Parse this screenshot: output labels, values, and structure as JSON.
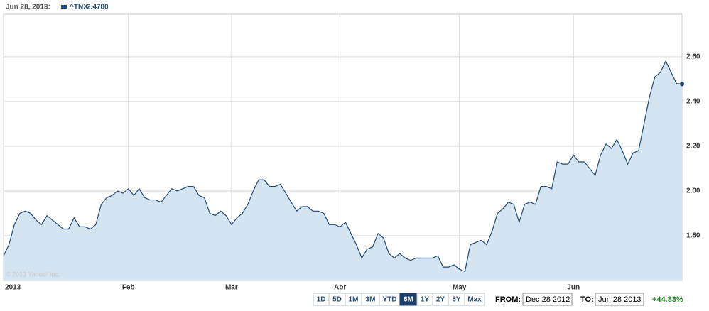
{
  "chart_data": {
    "type": "area",
    "header_date": "Jun 28, 2013:",
    "categories": [
      "2013",
      null,
      null,
      null,
      null,
      null,
      null,
      null,
      null,
      null,
      null,
      null,
      null,
      null,
      null,
      null,
      null,
      null,
      null,
      null,
      null,
      null,
      null,
      "Feb",
      null,
      null,
      null,
      null,
      null,
      null,
      null,
      null,
      null,
      null,
      null,
      null,
      null,
      null,
      null,
      null,
      null,
      null,
      "Mar",
      null,
      null,
      null,
      null,
      null,
      null,
      null,
      null,
      null,
      null,
      null,
      null,
      null,
      null,
      null,
      null,
      null,
      null,
      null,
      "Apr",
      null,
      null,
      null,
      null,
      null,
      null,
      null,
      null,
      null,
      null,
      null,
      null,
      null,
      null,
      null,
      null,
      null,
      null,
      null,
      null,
      null,
      "May",
      null,
      null,
      null,
      null,
      null,
      null,
      null,
      null,
      null,
      null,
      null,
      null,
      null,
      null,
      null,
      null,
      null,
      null,
      null,
      null,
      "Jun",
      null,
      null,
      null,
      null,
      null,
      null,
      null,
      null,
      null,
      null,
      null,
      null,
      null,
      null,
      null,
      null,
      null,
      null,
      null,
      null
    ],
    "series": [
      {
        "name": "^TNX",
        "color": "#1f4a78",
        "fill": "#d5e4f1",
        "current": {
          "value": 2.478,
          "label": "2.4780"
        },
        "values": [
          1.71,
          1.76,
          1.85,
          1.9,
          1.91,
          1.9,
          1.87,
          1.85,
          1.89,
          1.87,
          1.85,
          1.83,
          1.83,
          1.88,
          1.84,
          1.84,
          1.83,
          1.85,
          1.94,
          1.97,
          1.98,
          2.0,
          1.99,
          2.01,
          1.98,
          2.01,
          1.97,
          1.96,
          1.96,
          1.95,
          1.98,
          2.01,
          2.0,
          2.01,
          2.02,
          2.02,
          1.98,
          1.97,
          1.9,
          1.89,
          1.91,
          1.89,
          1.85,
          1.88,
          1.9,
          1.94,
          2.0,
          2.05,
          2.05,
          2.02,
          2.02,
          2.03,
          1.99,
          1.95,
          1.91,
          1.93,
          1.93,
          1.91,
          1.91,
          1.9,
          1.85,
          1.85,
          1.84,
          1.86,
          1.81,
          1.76,
          1.7,
          1.74,
          1.75,
          1.81,
          1.79,
          1.72,
          1.7,
          1.72,
          1.7,
          1.69,
          1.7,
          1.7,
          1.7,
          1.7,
          1.71,
          1.66,
          1.66,
          1.67,
          1.65,
          1.64,
          1.76,
          1.77,
          1.78,
          1.76,
          1.82,
          1.9,
          1.92,
          1.95,
          1.94,
          1.86,
          1.94,
          1.95,
          1.94,
          2.02,
          2.02,
          2.01,
          2.13,
          2.12,
          2.12,
          2.16,
          2.13,
          2.13,
          2.1,
          2.07,
          2.16,
          2.21,
          2.19,
          2.23,
          2.18,
          2.12,
          2.17,
          2.18,
          2.3,
          2.42,
          2.51,
          2.53,
          2.58,
          2.53,
          2.48,
          2.478
        ]
      }
    ],
    "ylim": [
      1.6,
      2.79
    ],
    "yticks": [
      {
        "value": 1.8,
        "label": "1.80"
      },
      {
        "value": 2.0,
        "label": "2.00"
      },
      {
        "value": 2.2,
        "label": "2.20"
      },
      {
        "value": 2.4,
        "label": "2.40"
      },
      {
        "value": 2.6,
        "label": "2.60"
      }
    ],
    "grid": true,
    "watermark": "© 2013 Yahoo! Inc."
  },
  "controls": {
    "ranges": [
      "1D",
      "5D",
      "1M",
      "3M",
      "YTD",
      "6M",
      "1Y",
      "2Y",
      "5Y",
      "Max"
    ],
    "selected_range": "6M",
    "from_label": "FROM:",
    "from_value": "Dec 28 2012",
    "to_label": "TO:",
    "to_value": "Jun 28 2013",
    "change": "+44.83%"
  }
}
